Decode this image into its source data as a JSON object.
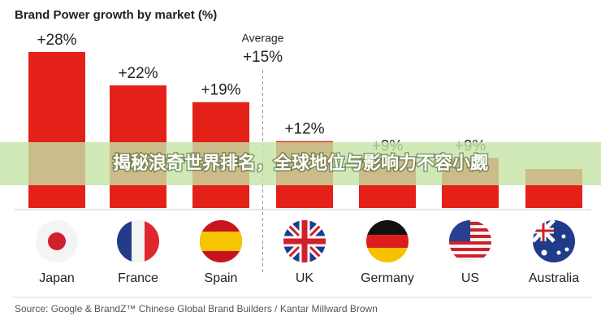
{
  "chart_data": {
    "type": "bar",
    "title": "Brand Power growth by market (%)",
    "categories": [
      "Japan",
      "France",
      "Spain",
      "UK",
      "Germany",
      "US",
      "Australia"
    ],
    "values": [
      28,
      22,
      19,
      12,
      9,
      9,
      7
    ],
    "value_labels": [
      "+28%",
      "+22%",
      "+19%",
      "+12%",
      "+9%",
      "+9%",
      null
    ],
    "color": "#e32119",
    "average": {
      "label": "Average",
      "value": 15,
      "value_label": "+15%"
    },
    "source": "Source: Google & BrandZ™ Chinese Global Brand Builders / Kantar Millward Brown"
  },
  "overlay_title": "揭秘浪奇世界排名，全球地位与影响力不容小觑"
}
